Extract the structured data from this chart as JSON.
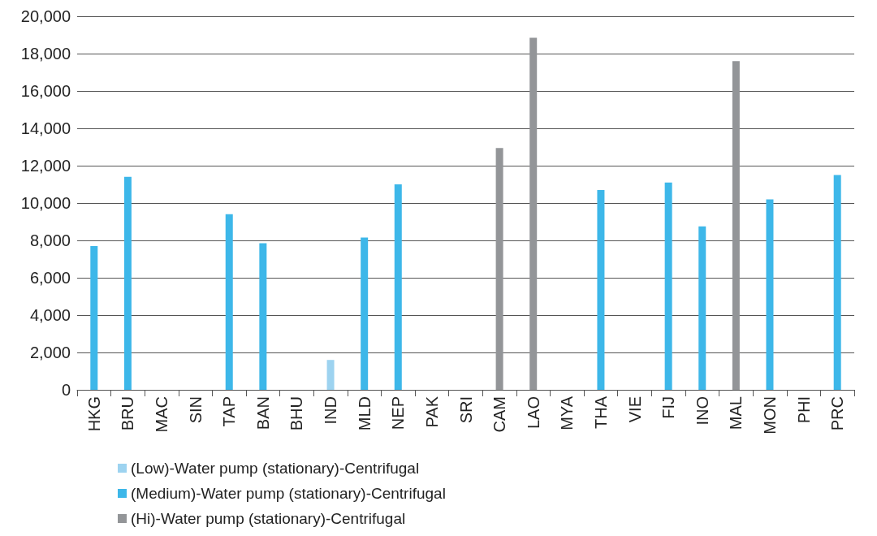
{
  "chart_data": {
    "type": "bar",
    "stacked": true,
    "categories": [
      "HKG",
      "BRU",
      "MAC",
      "SIN",
      "TAP",
      "BAN",
      "BHU",
      "IND",
      "MLD",
      "NEP",
      "PAK",
      "SRI",
      "CAM",
      "LAO",
      "MYA",
      "THA",
      "VIE",
      "FIJ",
      "INO",
      "MAL",
      "MON",
      "PHI",
      "PRC"
    ],
    "series": [
      {
        "name": "(Low)-Water pump (stationary)-Centrifugal",
        "color": "#9dd3f0",
        "values": [
          null,
          null,
          null,
          null,
          null,
          null,
          null,
          1600,
          null,
          null,
          null,
          null,
          null,
          null,
          null,
          null,
          null,
          null,
          null,
          null,
          null,
          null,
          null
        ]
      },
      {
        "name": "(Medium)-Water pump (stationary)-Centrifugal",
        "color": "#3db7e9",
        "values": [
          7700,
          11400,
          null,
          null,
          9400,
          7850,
          null,
          null,
          8150,
          11000,
          null,
          null,
          null,
          null,
          null,
          10700,
          null,
          11100,
          8750,
          null,
          10200,
          null,
          11500
        ]
      },
      {
        "name": "(Hi)-Water pump (stationary)-Centrifugal",
        "color": "#939598",
        "values": [
          null,
          null,
          null,
          null,
          null,
          null,
          null,
          null,
          null,
          null,
          null,
          null,
          12950,
          18850,
          null,
          null,
          null,
          null,
          null,
          17600,
          null,
          null,
          null
        ]
      }
    ],
    "ylim": [
      0,
      20000
    ],
    "yticks": [
      {
        "value": 0,
        "label": "0"
      },
      {
        "value": 2000,
        "label": "2,000"
      },
      {
        "value": 4000,
        "label": "4,000"
      },
      {
        "value": 6000,
        "label": "6,000"
      },
      {
        "value": 8000,
        "label": "8,000"
      },
      {
        "value": 10000,
        "label": "10,000"
      },
      {
        "value": 12000,
        "label": "12,000"
      },
      {
        "value": 14000,
        "label": "14,000"
      },
      {
        "value": 16000,
        "label": "16,000"
      },
      {
        "value": 18000,
        "label": "18,000"
      },
      {
        "value": 20000,
        "label": "20,000"
      }
    ],
    "grid": "y",
    "legend": "bottom"
  }
}
